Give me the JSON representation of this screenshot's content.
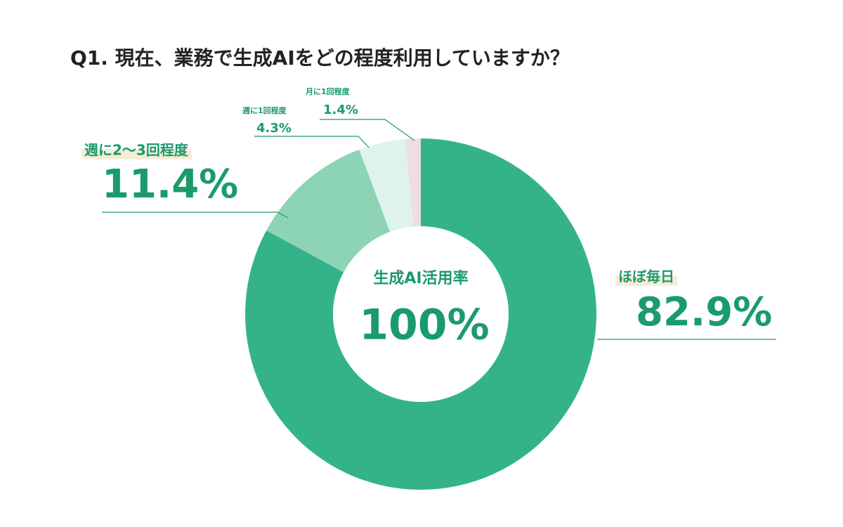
{
  "chart_data": {
    "type": "donut",
    "title": "Q1. 現在、業務で生成AIをどの程度利用していますか？",
    "categories": [
      "ほぼ毎日",
      "週に2〜3回程度",
      "週に1回程度",
      "月に1回程度"
    ],
    "values": [
      82.9,
      11.4,
      4.3,
      1.4
    ],
    "value_labels": [
      "82.9%",
      "11.4%",
      "4.3%",
      "1.4%"
    ],
    "colors": [
      "#34b38a",
      "#8dd4b6",
      "#def3ee",
      "#f0dde0"
    ],
    "center_label": "生成AI活用率",
    "center_value_label": "100%"
  }
}
